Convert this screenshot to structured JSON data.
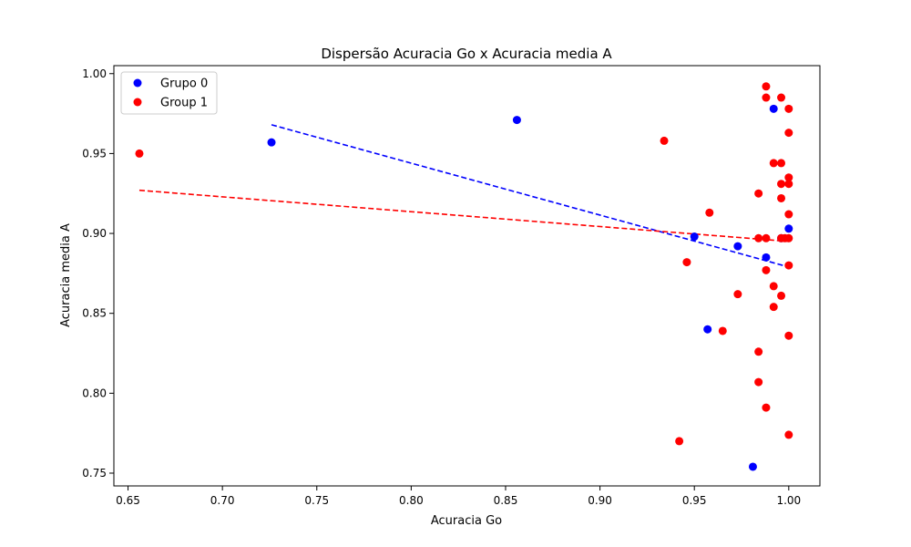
{
  "chart_data": {
    "type": "scatter",
    "title": "Dispersão Acuracia Go x Acuracia media A",
    "xlabel": "Acuracia Go",
    "ylabel": "Acuracia media A",
    "xlim": [
      0.6425,
      1.0165
    ],
    "ylim": [
      0.742,
      1.005
    ],
    "xticks": [
      0.65,
      0.7,
      0.75,
      0.8,
      0.85,
      0.9,
      0.95,
      1.0
    ],
    "xtick_labels": [
      "0.65",
      "0.70",
      "0.75",
      "0.80",
      "0.85",
      "0.90",
      "0.95",
      "1.00"
    ],
    "yticks": [
      0.75,
      0.8,
      0.85,
      0.9,
      0.95,
      1.0
    ],
    "ytick_labels": [
      "0.75",
      "0.80",
      "0.85",
      "0.90",
      "0.95",
      "1.00"
    ],
    "grid": false,
    "legend_position": "top-left",
    "series": [
      {
        "name": "Grupo 0",
        "color": "#0000ff",
        "points": [
          [
            0.726,
            0.957
          ],
          [
            0.856,
            0.971
          ],
          [
            0.95,
            0.898
          ],
          [
            0.957,
            0.84
          ],
          [
            0.973,
            0.892
          ],
          [
            0.981,
            0.754
          ],
          [
            0.988,
            0.885
          ],
          [
            0.992,
            0.978
          ],
          [
            0.996,
            0.897
          ],
          [
            1.0,
            0.903
          ]
        ],
        "trendline": {
          "x": [
            0.726,
            1.0
          ],
          "y": [
            0.968,
            0.879
          ],
          "style": "dashed"
        }
      },
      {
        "name": "Group 1",
        "color": "#ff0000",
        "points": [
          [
            0.656,
            0.95
          ],
          [
            0.934,
            0.958
          ],
          [
            0.942,
            0.77
          ],
          [
            0.946,
            0.882
          ],
          [
            0.958,
            0.913
          ],
          [
            0.965,
            0.839
          ],
          [
            0.973,
            0.862
          ],
          [
            0.984,
            0.925
          ],
          [
            0.984,
            0.897
          ],
          [
            0.984,
            0.826
          ],
          [
            0.984,
            0.807
          ],
          [
            0.988,
            0.992
          ],
          [
            0.988,
            0.985
          ],
          [
            0.988,
            0.897
          ],
          [
            0.988,
            0.877
          ],
          [
            0.988,
            0.791
          ],
          [
            0.992,
            0.944
          ],
          [
            0.992,
            0.867
          ],
          [
            0.992,
            0.854
          ],
          [
            0.996,
            0.985
          ],
          [
            0.996,
            0.944
          ],
          [
            0.996,
            0.931
          ],
          [
            0.996,
            0.922
          ],
          [
            0.996,
            0.897
          ],
          [
            0.996,
            0.861
          ],
          [
            0.998,
            0.897
          ],
          [
            1.0,
            0.978
          ],
          [
            1.0,
            0.963
          ],
          [
            1.0,
            0.935
          ],
          [
            1.0,
            0.931
          ],
          [
            1.0,
            0.912
          ],
          [
            1.0,
            0.897
          ],
          [
            1.0,
            0.88
          ],
          [
            1.0,
            0.836
          ],
          [
            1.0,
            0.774
          ]
        ],
        "trendline": {
          "x": [
            0.656,
            1.0
          ],
          "y": [
            0.927,
            0.895
          ],
          "style": "dashed"
        }
      }
    ]
  }
}
